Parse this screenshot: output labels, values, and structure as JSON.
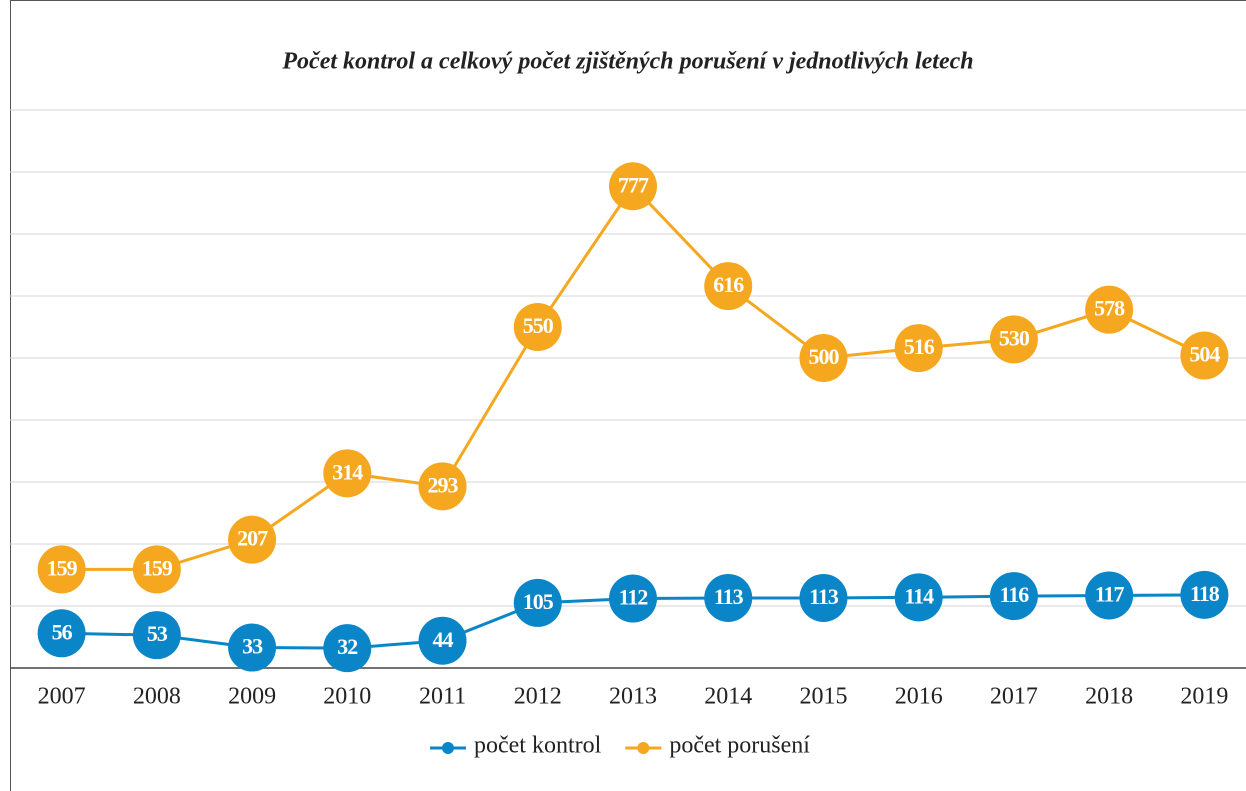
{
  "chart_data": {
    "type": "line",
    "title": "Počet kontrol a celkový počet zjištěných porušení v jednotlivých letech",
    "categories": [
      "2007",
      "2008",
      "2009",
      "2010",
      "2011",
      "2012",
      "2013",
      "2014",
      "2015",
      "2016",
      "2017",
      "2018",
      "2019"
    ],
    "series": [
      {
        "name": "počet kontrol",
        "color": "#0a86c8",
        "values": [
          56,
          53,
          33,
          32,
          44,
          105,
          112,
          113,
          113,
          114,
          116,
          117,
          118
        ]
      },
      {
        "name": "počet porušení",
        "color": "#f5a81f",
        "values": [
          159,
          159,
          207,
          314,
          293,
          550,
          777,
          616,
          500,
          516,
          530,
          578,
          504
        ]
      }
    ],
    "ylim": [
      0,
      900
    ],
    "yticks": [
      0,
      100,
      200,
      300,
      400,
      500,
      600,
      700,
      800,
      900
    ],
    "grid": true,
    "legend": "bottom"
  }
}
